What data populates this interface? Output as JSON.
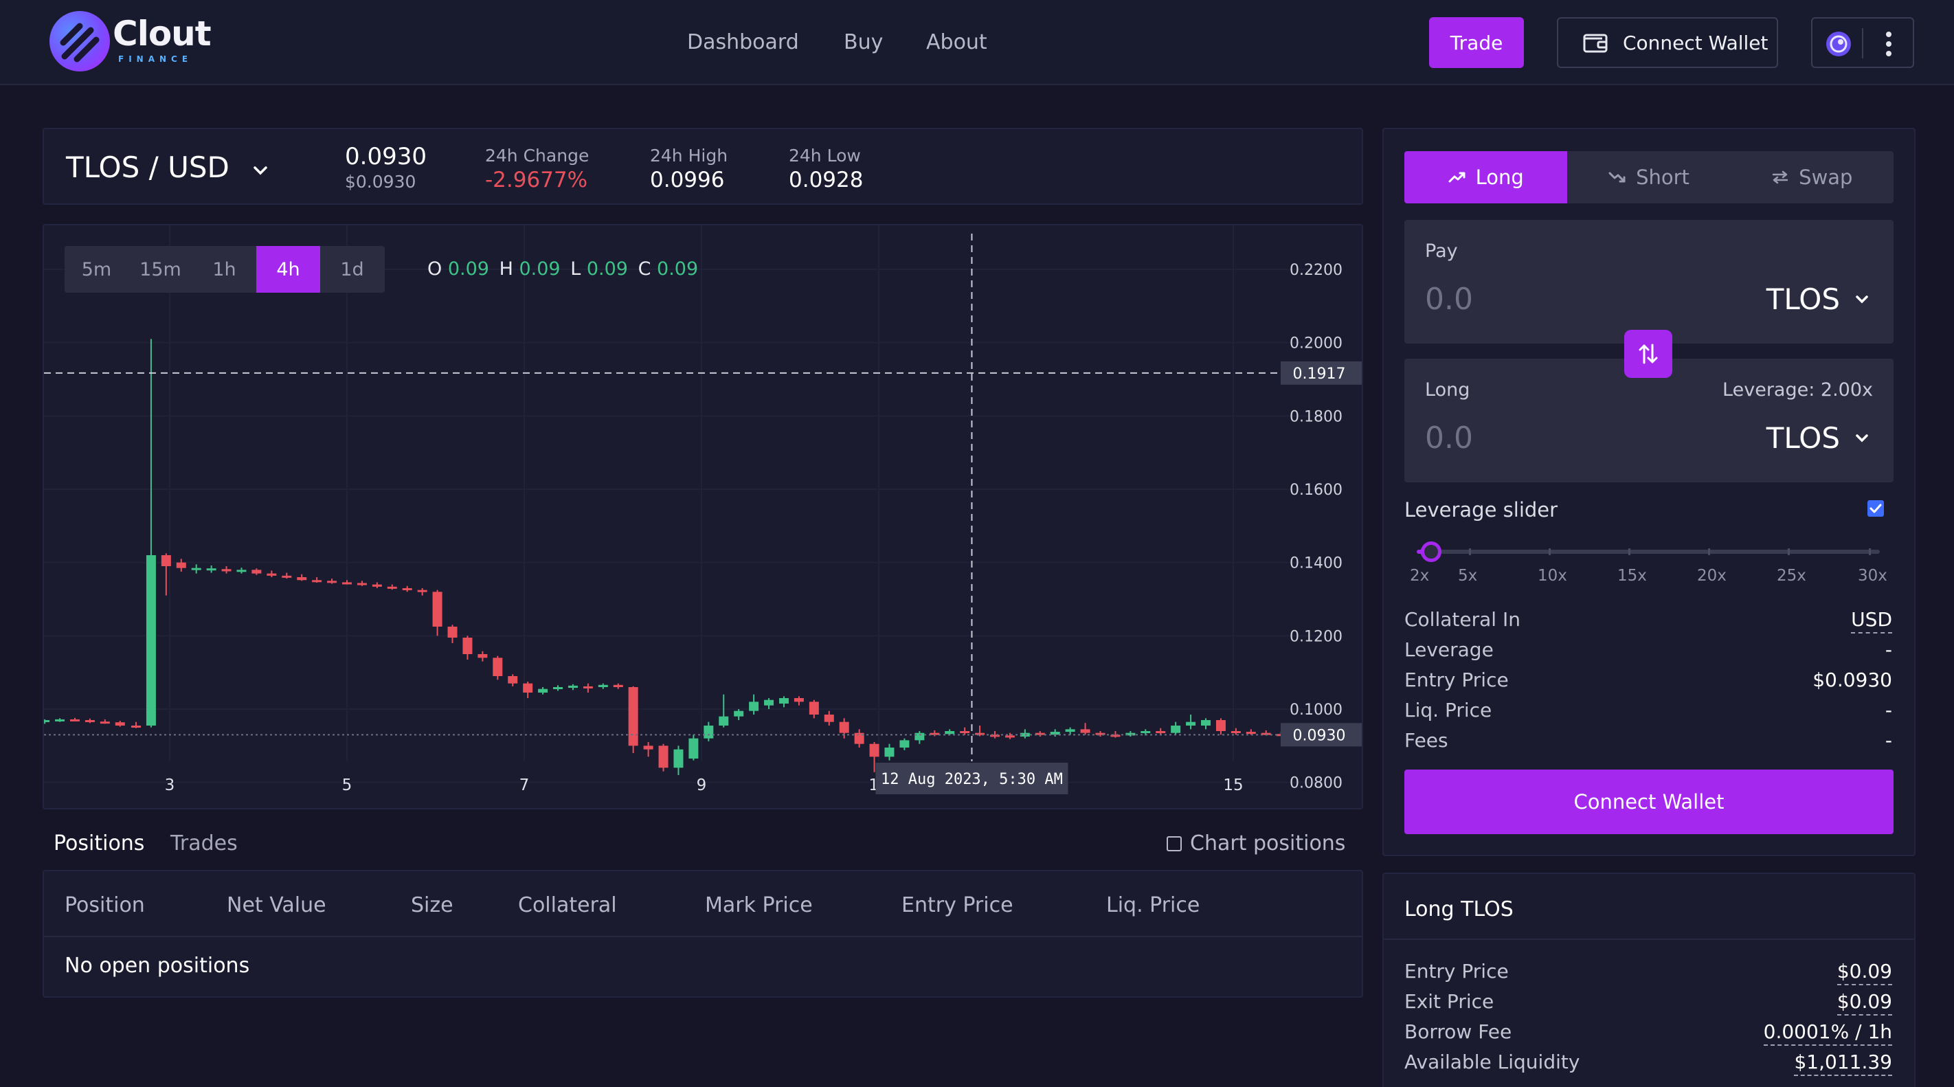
{
  "brand": {
    "name": "Clout",
    "sub": "FINANCE"
  },
  "nav": {
    "dashboard": "Dashboard",
    "buy": "Buy",
    "about": "About",
    "trade": "Trade",
    "connect_wallet": "Connect Wallet"
  },
  "ticker": {
    "pair": "TLOS / USD",
    "price": "0.0930",
    "price_usd": "$0.0930",
    "change_label": "24h Change",
    "change_value": "-2.9677%",
    "high_label": "24h High",
    "high_value": "0.0996",
    "low_label": "24h Low",
    "low_value": "0.0928"
  },
  "timeframes": [
    "5m",
    "15m",
    "1h",
    "4h",
    "1d"
  ],
  "active_timeframe": "4h",
  "ohlc": {
    "o_label": "O",
    "o": "0.09",
    "h_label": "H",
    "h": "0.09",
    "l_label": "L",
    "l": "0.09",
    "c_label": "C",
    "c": "0.09"
  },
  "chart_data": {
    "type": "candlestick",
    "y_ticks": [
      "0.2200",
      "0.2000",
      "0.1800",
      "0.1600",
      "0.1400",
      "0.1200",
      "0.1000",
      "0.0800"
    ],
    "x_ticks": [
      "3",
      "5",
      "7",
      "9",
      "11",
      "15"
    ],
    "ylim": [
      0.073,
      0.232
    ],
    "crosshair_price": "0.1917",
    "last_price": "0.0930",
    "crosshair_time": "12 Aug 2023, 5:30 AM",
    "up_color": "#3fc288",
    "down_color": "#e8505b",
    "candles": [
      {
        "t": 1.25,
        "o": 0.0975,
        "h": 0.0978,
        "l": 0.0965,
        "c": 0.097
      },
      {
        "t": 1.42,
        "o": 0.097,
        "h": 0.0975,
        "l": 0.0962,
        "c": 0.0965
      },
      {
        "t": 1.59,
        "o": 0.0965,
        "h": 0.0972,
        "l": 0.096,
        "c": 0.097
      },
      {
        "t": 1.76,
        "o": 0.097,
        "h": 0.0975,
        "l": 0.0965,
        "c": 0.0972
      },
      {
        "t": 1.93,
        "o": 0.0972,
        "h": 0.0976,
        "l": 0.0968,
        "c": 0.097
      },
      {
        "t": 2.1,
        "o": 0.097,
        "h": 0.0974,
        "l": 0.0962,
        "c": 0.0966
      },
      {
        "t": 2.27,
        "o": 0.0966,
        "h": 0.0972,
        "l": 0.096,
        "c": 0.0964
      },
      {
        "t": 2.44,
        "o": 0.0964,
        "h": 0.0968,
        "l": 0.0952,
        "c": 0.0955
      },
      {
        "t": 2.62,
        "o": 0.0955,
        "h": 0.0965,
        "l": 0.0948,
        "c": 0.095
      },
      {
        "t": 2.79,
        "o": 0.0955,
        "h": 0.201,
        "l": 0.095,
        "c": 0.142
      },
      {
        "t": 2.96,
        "o": 0.142,
        "h": 0.1425,
        "l": 0.131,
        "c": 0.139
      },
      {
        "t": 3.13,
        "o": 0.14,
        "h": 0.141,
        "l": 0.1375,
        "c": 0.1385
      },
      {
        "t": 3.3,
        "o": 0.138,
        "h": 0.1395,
        "l": 0.137,
        "c": 0.1385
      },
      {
        "t": 3.47,
        "o": 0.138,
        "h": 0.1392,
        "l": 0.1372,
        "c": 0.1384
      },
      {
        "t": 3.64,
        "o": 0.1382,
        "h": 0.139,
        "l": 0.137,
        "c": 0.1376
      },
      {
        "t": 3.81,
        "o": 0.1378,
        "h": 0.1386,
        "l": 0.137,
        "c": 0.138
      },
      {
        "t": 3.98,
        "o": 0.138,
        "h": 0.1384,
        "l": 0.1366,
        "c": 0.137
      },
      {
        "t": 4.15,
        "o": 0.137,
        "h": 0.1378,
        "l": 0.136,
        "c": 0.1364
      },
      {
        "t": 4.32,
        "o": 0.1364,
        "h": 0.1372,
        "l": 0.1356,
        "c": 0.136
      },
      {
        "t": 4.49,
        "o": 0.136,
        "h": 0.1368,
        "l": 0.135,
        "c": 0.1352
      },
      {
        "t": 4.66,
        "o": 0.1352,
        "h": 0.136,
        "l": 0.1345,
        "c": 0.135
      },
      {
        "t": 4.83,
        "o": 0.135,
        "h": 0.1356,
        "l": 0.1342,
        "c": 0.1346
      },
      {
        "t": 5.0,
        "o": 0.1346,
        "h": 0.1352,
        "l": 0.134,
        "c": 0.1344
      },
      {
        "t": 5.17,
        "o": 0.1344,
        "h": 0.135,
        "l": 0.1336,
        "c": 0.134
      },
      {
        "t": 5.34,
        "o": 0.134,
        "h": 0.1346,
        "l": 0.133,
        "c": 0.1334
      },
      {
        "t": 5.51,
        "o": 0.1334,
        "h": 0.134,
        "l": 0.1326,
        "c": 0.133
      },
      {
        "t": 5.68,
        "o": 0.133,
        "h": 0.1336,
        "l": 0.132,
        "c": 0.1325
      },
      {
        "t": 5.85,
        "o": 0.1325,
        "h": 0.133,
        "l": 0.131,
        "c": 0.132
      },
      {
        "t": 6.02,
        "o": 0.132,
        "h": 0.1325,
        "l": 0.12,
        "c": 0.1225
      },
      {
        "t": 6.19,
        "o": 0.1225,
        "h": 0.123,
        "l": 0.118,
        "c": 0.1195
      },
      {
        "t": 6.36,
        "o": 0.1195,
        "h": 0.12,
        "l": 0.1135,
        "c": 0.115
      },
      {
        "t": 6.53,
        "o": 0.115,
        "h": 0.1158,
        "l": 0.113,
        "c": 0.114
      },
      {
        "t": 6.7,
        "o": 0.114,
        "h": 0.1145,
        "l": 0.108,
        "c": 0.109
      },
      {
        "t": 6.87,
        "o": 0.109,
        "h": 0.1095,
        "l": 0.1062,
        "c": 0.107
      },
      {
        "t": 7.04,
        "o": 0.107,
        "h": 0.1075,
        "l": 0.103,
        "c": 0.1045
      },
      {
        "t": 7.21,
        "o": 0.1045,
        "h": 0.106,
        "l": 0.104,
        "c": 0.1055
      },
      {
        "t": 7.38,
        "o": 0.1055,
        "h": 0.1065,
        "l": 0.105,
        "c": 0.106
      },
      {
        "t": 7.55,
        "o": 0.1058,
        "h": 0.1068,
        "l": 0.1052,
        "c": 0.1064
      },
      {
        "t": 7.72,
        "o": 0.1062,
        "h": 0.107,
        "l": 0.1045,
        "c": 0.106
      },
      {
        "t": 7.89,
        "o": 0.106,
        "h": 0.107,
        "l": 0.1055,
        "c": 0.1066
      },
      {
        "t": 8.06,
        "o": 0.1066,
        "h": 0.107,
        "l": 0.1055,
        "c": 0.106
      },
      {
        "t": 8.23,
        "o": 0.106,
        "h": 0.1062,
        "l": 0.088,
        "c": 0.09
      },
      {
        "t": 8.4,
        "o": 0.09,
        "h": 0.091,
        "l": 0.087,
        "c": 0.089
      },
      {
        "t": 8.57,
        "o": 0.09,
        "h": 0.0905,
        "l": 0.083,
        "c": 0.084
      },
      {
        "t": 8.74,
        "o": 0.084,
        "h": 0.09,
        "l": 0.082,
        "c": 0.089
      },
      {
        "t": 8.91,
        "o": 0.0865,
        "h": 0.093,
        "l": 0.086,
        "c": 0.092
      },
      {
        "t": 9.08,
        "o": 0.092,
        "h": 0.0965,
        "l": 0.0912,
        "c": 0.0955
      },
      {
        "t": 9.25,
        "o": 0.0955,
        "h": 0.104,
        "l": 0.095,
        "c": 0.098
      },
      {
        "t": 9.42,
        "o": 0.098,
        "h": 0.1,
        "l": 0.097,
        "c": 0.0995
      },
      {
        "t": 9.59,
        "o": 0.0995,
        "h": 0.104,
        "l": 0.0985,
        "c": 0.102
      },
      {
        "t": 9.76,
        "o": 0.101,
        "h": 0.103,
        "l": 0.1,
        "c": 0.1025
      },
      {
        "t": 9.93,
        "o": 0.1015,
        "h": 0.1035,
        "l": 0.1005,
        "c": 0.103
      },
      {
        "t": 10.1,
        "o": 0.103,
        "h": 0.1035,
        "l": 0.101,
        "c": 0.102
      },
      {
        "t": 10.27,
        "o": 0.102,
        "h": 0.1025,
        "l": 0.0975,
        "c": 0.0985
      },
      {
        "t": 10.44,
        "o": 0.0985,
        "h": 0.0995,
        "l": 0.0955,
        "c": 0.0965
      },
      {
        "t": 10.61,
        "o": 0.0965,
        "h": 0.0975,
        "l": 0.092,
        "c": 0.0935
      },
      {
        "t": 10.78,
        "o": 0.0935,
        "h": 0.0945,
        "l": 0.0895,
        "c": 0.0905
      },
      {
        "t": 10.95,
        "o": 0.0905,
        "h": 0.091,
        "l": 0.0828,
        "c": 0.087
      },
      {
        "t": 11.12,
        "o": 0.087,
        "h": 0.0905,
        "l": 0.086,
        "c": 0.0895
      },
      {
        "t": 11.29,
        "o": 0.0895,
        "h": 0.092,
        "l": 0.0888,
        "c": 0.0915
      },
      {
        "t": 11.46,
        "o": 0.0915,
        "h": 0.094,
        "l": 0.0905,
        "c": 0.0935
      },
      {
        "t": 11.63,
        "o": 0.0935,
        "h": 0.0942,
        "l": 0.0926,
        "c": 0.0932
      },
      {
        "t": 11.8,
        "o": 0.0932,
        "h": 0.0945,
        "l": 0.0928,
        "c": 0.094
      },
      {
        "t": 11.97,
        "o": 0.094,
        "h": 0.095,
        "l": 0.093,
        "c": 0.0935
      },
      {
        "t": 12.14,
        "o": 0.0935,
        "h": 0.0955,
        "l": 0.0926,
        "c": 0.093
      },
      {
        "t": 12.31,
        "o": 0.093,
        "h": 0.094,
        "l": 0.092,
        "c": 0.0928
      },
      {
        "t": 12.48,
        "o": 0.0928,
        "h": 0.0935,
        "l": 0.0918,
        "c": 0.0925
      },
      {
        "t": 12.65,
        "o": 0.0925,
        "h": 0.0945,
        "l": 0.092,
        "c": 0.0935
      },
      {
        "t": 12.82,
        "o": 0.0935,
        "h": 0.094,
        "l": 0.0925,
        "c": 0.093
      },
      {
        "t": 12.99,
        "o": 0.093,
        "h": 0.0945,
        "l": 0.0925,
        "c": 0.0938
      },
      {
        "t": 13.16,
        "o": 0.0938,
        "h": 0.095,
        "l": 0.093,
        "c": 0.0945
      },
      {
        "t": 13.33,
        "o": 0.0945,
        "h": 0.0962,
        "l": 0.093,
        "c": 0.0935
      },
      {
        "t": 13.5,
        "o": 0.0935,
        "h": 0.094,
        "l": 0.0925,
        "c": 0.093
      },
      {
        "t": 13.67,
        "o": 0.093,
        "h": 0.094,
        "l": 0.0922,
        "c": 0.0928
      },
      {
        "t": 13.84,
        "o": 0.0928,
        "h": 0.094,
        "l": 0.0925,
        "c": 0.0935
      },
      {
        "t": 14.01,
        "o": 0.0935,
        "h": 0.0945,
        "l": 0.0928,
        "c": 0.094
      },
      {
        "t": 14.18,
        "o": 0.094,
        "h": 0.0948,
        "l": 0.093,
        "c": 0.0935
      },
      {
        "t": 14.35,
        "o": 0.0935,
        "h": 0.0965,
        "l": 0.093,
        "c": 0.0955
      },
      {
        "t": 14.52,
        "o": 0.0955,
        "h": 0.0985,
        "l": 0.0945,
        "c": 0.0965
      },
      {
        "t": 14.69,
        "o": 0.0955,
        "h": 0.0975,
        "l": 0.0945,
        "c": 0.097
      },
      {
        "t": 14.86,
        "o": 0.097,
        "h": 0.0975,
        "l": 0.093,
        "c": 0.094
      },
      {
        "t": 15.03,
        "o": 0.094,
        "h": 0.0948,
        "l": 0.093,
        "c": 0.0938
      },
      {
        "t": 15.2,
        "o": 0.0938,
        "h": 0.0945,
        "l": 0.093,
        "c": 0.0935
      },
      {
        "t": 15.37,
        "o": 0.0935,
        "h": 0.0942,
        "l": 0.0928,
        "c": 0.0932
      },
      {
        "t": 15.54,
        "o": 0.0932,
        "h": 0.0938,
        "l": 0.0926,
        "c": 0.093
      }
    ]
  },
  "positions": {
    "tab_positions": "Positions",
    "tab_trades": "Trades",
    "chart_positions": "Chart positions",
    "headers": [
      "Position",
      "Net Value",
      "Size",
      "Collateral",
      "Mark Price",
      "Entry Price",
      "Liq. Price"
    ],
    "empty": "No open positions"
  },
  "trade": {
    "modes": [
      "Long",
      "Short",
      "Swap"
    ],
    "active_mode": "Long",
    "pay_label": "Pay",
    "pay_value": "0.0",
    "pay_token": "TLOS",
    "long_label": "Long",
    "long_value": "0.0",
    "long_token": "TLOS",
    "leverage_text": "Leverage: 2.00x",
    "leverage_slider_label": "Leverage slider",
    "leverage_checked": true,
    "leverage_marks": [
      "2x",
      "5x",
      "10x",
      "15x",
      "20x",
      "25x",
      "30x"
    ],
    "leverage_value": 2,
    "details": [
      {
        "k": "Collateral In",
        "v": "USD"
      },
      {
        "k": "Leverage",
        "v": "-"
      },
      {
        "k": "Entry Price",
        "v": "$0.0930"
      },
      {
        "k": "Liq. Price",
        "v": "-"
      },
      {
        "k": "Fees",
        "v": "-"
      }
    ],
    "connect_wallet": "Connect Wallet"
  },
  "info": {
    "title": "Long TLOS",
    "rows": [
      {
        "k": "Entry Price",
        "v": "$0.09"
      },
      {
        "k": "Exit Price",
        "v": "$0.09"
      },
      {
        "k": "Borrow Fee",
        "v": "0.0001% / 1h"
      },
      {
        "k": "Available Liquidity",
        "v": "$1,011.39"
      }
    ]
  },
  "colors": {
    "accent": "#a528ee",
    "bg": "#161527",
    "panel": "#1a1b2e",
    "up": "#3fc288",
    "down": "#e8505b"
  }
}
